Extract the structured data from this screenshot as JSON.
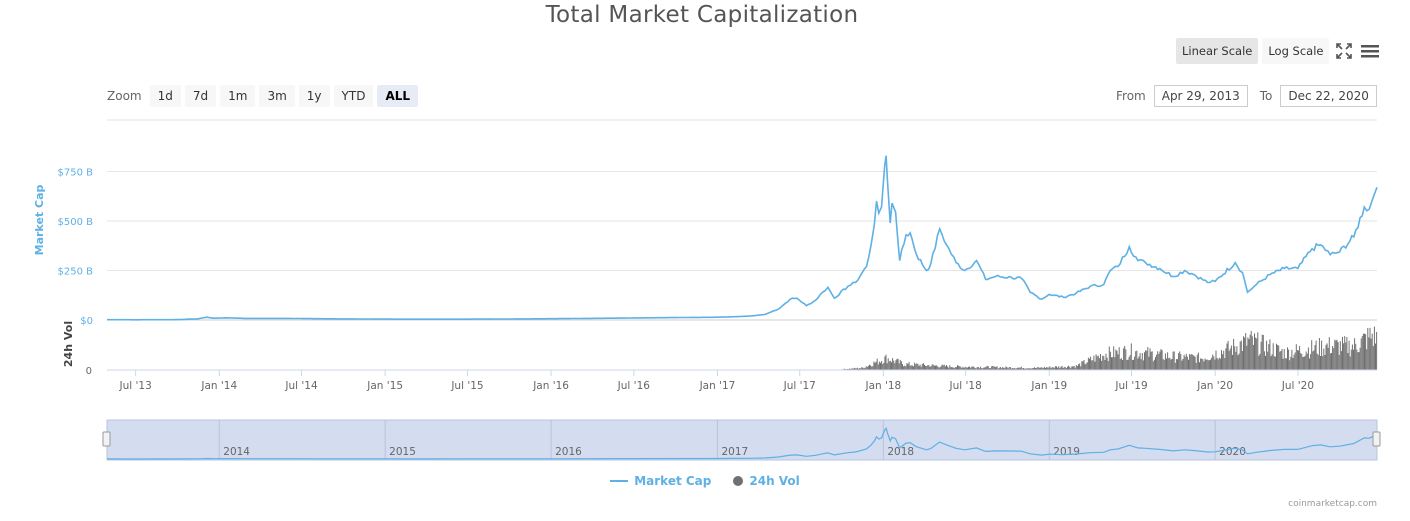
{
  "title": "Total Market Capitalization",
  "scale_buttons": {
    "linear": "Linear Scale",
    "log": "Log Scale"
  },
  "zoom": {
    "label": "Zoom",
    "buttons": [
      "1d",
      "7d",
      "1m",
      "3m",
      "1y",
      "YTD",
      "ALL"
    ],
    "active": "ALL"
  },
  "range": {
    "from_label": "From",
    "from_value": "Apr 29, 2013",
    "to_label": "To",
    "to_value": "Dec 22, 2020"
  },
  "legend": {
    "market_cap": "Market Cap",
    "vol": "24h Vol"
  },
  "credits": "coinmarketcap.com",
  "colors": {
    "market_cap": "#5fb0e4",
    "volume": "#707070",
    "navigator_bg": "#d4dcef"
  },
  "icons": {
    "fullscreen": "fullscreen-icon",
    "menu": "menu-icon"
  },
  "chart_data": {
    "type": "line",
    "x_axis": {
      "ticks": [
        "Jul '13",
        "Jan '14",
        "Jul '14",
        "Jan '15",
        "Jul '15",
        "Jan '16",
        "Jul '16",
        "Jan '17",
        "Jul '17",
        "Jan '18",
        "Jul '18",
        "Jan '19",
        "Jul '19",
        "Jan '20",
        "Jul '20"
      ]
    },
    "y_axis": {
      "label": "Market Cap",
      "ticks": [
        "$0",
        "$250 B",
        "$500 B",
        "$750 B"
      ],
      "range": [
        0,
        830
      ]
    },
    "vol_axis": {
      "label": "24h Vol",
      "ticks": [
        "0"
      ]
    },
    "navigator_years": [
      "2014",
      "2015",
      "2016",
      "2017",
      "2018",
      "2019",
      "2020"
    ],
    "unit": "Billion USD",
    "series": [
      {
        "name": "Market Cap",
        "points": [
          [
            "2013-04-29",
            1.6
          ],
          [
            "2013-07-01",
            1.2
          ],
          [
            "2013-10-01",
            1.8
          ],
          [
            "2013-11-15",
            6
          ],
          [
            "2013-12-04",
            14
          ],
          [
            "2013-12-20",
            9
          ],
          [
            "2014-01-15",
            11
          ],
          [
            "2014-03-01",
            8
          ],
          [
            "2014-06-01",
            8
          ],
          [
            "2014-09-01",
            6
          ],
          [
            "2014-12-31",
            4.5
          ],
          [
            "2015-03-01",
            3.8
          ],
          [
            "2015-07-01",
            4.2
          ],
          [
            "2015-11-01",
            5.5
          ],
          [
            "2016-01-01",
            6.5
          ],
          [
            "2016-06-01",
            9.5
          ],
          [
            "2016-07-01",
            10.5
          ],
          [
            "2016-12-31",
            14
          ],
          [
            "2017-02-01",
            16
          ],
          [
            "2017-03-15",
            20
          ],
          [
            "2017-04-15",
            28
          ],
          [
            "2017-05-15",
            55
          ],
          [
            "2017-06-10",
            105
          ],
          [
            "2017-06-25",
            110
          ],
          [
            "2017-07-16",
            72
          ],
          [
            "2017-08-05",
            100
          ],
          [
            "2017-08-20",
            140
          ],
          [
            "2017-09-01",
            165
          ],
          [
            "2017-09-15",
            110
          ],
          [
            "2017-10-15",
            170
          ],
          [
            "2017-11-01",
            190
          ],
          [
            "2017-11-25",
            270
          ],
          [
            "2017-12-05",
            380
          ],
          [
            "2017-12-12",
            480
          ],
          [
            "2017-12-17",
            600
          ],
          [
            "2017-12-22",
            540
          ],
          [
            "2017-12-28",
            570
          ],
          [
            "2018-01-04",
            780
          ],
          [
            "2018-01-07",
            830
          ],
          [
            "2018-01-10",
            700
          ],
          [
            "2018-01-16",
            490
          ],
          [
            "2018-01-20",
            590
          ],
          [
            "2018-01-28",
            545
          ],
          [
            "2018-02-06",
            300
          ],
          [
            "2018-02-20",
            430
          ],
          [
            "2018-03-01",
            440
          ],
          [
            "2018-03-15",
            330
          ],
          [
            "2018-04-06",
            250
          ],
          [
            "2018-04-15",
            280
          ],
          [
            "2018-05-05",
            460
          ],
          [
            "2018-05-20",
            380
          ],
          [
            "2018-06-10",
            290
          ],
          [
            "2018-06-29",
            250
          ],
          [
            "2018-07-25",
            300
          ],
          [
            "2018-08-14",
            205
          ],
          [
            "2018-09-05",
            220
          ],
          [
            "2018-10-10",
            215
          ],
          [
            "2018-11-01",
            210
          ],
          [
            "2018-11-20",
            140
          ],
          [
            "2018-12-15",
            105
          ],
          [
            "2019-01-01",
            130
          ],
          [
            "2019-02-01",
            115
          ],
          [
            "2019-03-01",
            135
          ],
          [
            "2019-04-01",
            170
          ],
          [
            "2019-05-01",
            180
          ],
          [
            "2019-05-15",
            250
          ],
          [
            "2019-06-01",
            270
          ],
          [
            "2019-06-26",
            370
          ],
          [
            "2019-07-15",
            300
          ],
          [
            "2019-08-01",
            290
          ],
          [
            "2019-09-01",
            260
          ],
          [
            "2019-10-01",
            220
          ],
          [
            "2019-10-26",
            250
          ],
          [
            "2019-11-15",
            230
          ],
          [
            "2019-12-15",
            190
          ],
          [
            "2020-01-01",
            195
          ],
          [
            "2020-02-14",
            290
          ],
          [
            "2020-03-01",
            240
          ],
          [
            "2020-03-12",
            140
          ],
          [
            "2020-04-01",
            180
          ],
          [
            "2020-05-01",
            230
          ],
          [
            "2020-06-01",
            260
          ],
          [
            "2020-07-01",
            260
          ],
          [
            "2020-08-01",
            360
          ],
          [
            "2020-08-20",
            380
          ],
          [
            "2020-09-10",
            330
          ],
          [
            "2020-10-01",
            345
          ],
          [
            "2020-11-01",
            420
          ],
          [
            "2020-11-24",
            570
          ],
          [
            "2020-12-05",
            560
          ],
          [
            "2020-12-17",
            640
          ],
          [
            "2020-12-22",
            670
          ]
        ]
      },
      {
        "name": "24h Vol",
        "points": [
          [
            "2013-04-29",
            0
          ],
          [
            "2017-10-01",
            0.3
          ],
          [
            "2017-11-15",
            0.8
          ],
          [
            "2017-12-15",
            3
          ],
          [
            "2018-01-07",
            4.5
          ],
          [
            "2018-02-15",
            2.2
          ],
          [
            "2018-06-01",
            1.3
          ],
          [
            "2018-12-01",
            0.8
          ],
          [
            "2019-03-01",
            1.5
          ],
          [
            "2019-05-01",
            6
          ],
          [
            "2019-06-26",
            7
          ],
          [
            "2019-10-01",
            5
          ],
          [
            "2019-12-01",
            4.5
          ],
          [
            "2020-02-01",
            8
          ],
          [
            "2020-03-15",
            11
          ],
          [
            "2020-06-01",
            6.5
          ],
          [
            "2020-09-05",
            9
          ],
          [
            "2020-11-01",
            9
          ],
          [
            "2020-12-10",
            13
          ],
          [
            "2020-12-22",
            12
          ]
        ]
      }
    ]
  }
}
